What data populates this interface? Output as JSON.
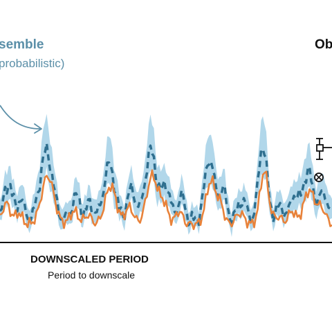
{
  "labels": {
    "ensemble_title": "semble",
    "ensemble_subtitle": "probabilistic)",
    "observations_title": "Ob",
    "period_title": "DOWNSCALED PERIOD",
    "period_subtitle": "Period to downscale"
  },
  "colors": {
    "ensemble_text": "#5b8fa8",
    "band_fill": "#a9d3e8",
    "ensemble_mean": "#2f6f8f",
    "observed": "#e8823a",
    "axis": "#111111"
  },
  "icons": {
    "arrow": "curved-arrow-icon",
    "observation_marker": "boxplot-marker-icon",
    "observed_marker": "circled-cross-icon"
  }
}
